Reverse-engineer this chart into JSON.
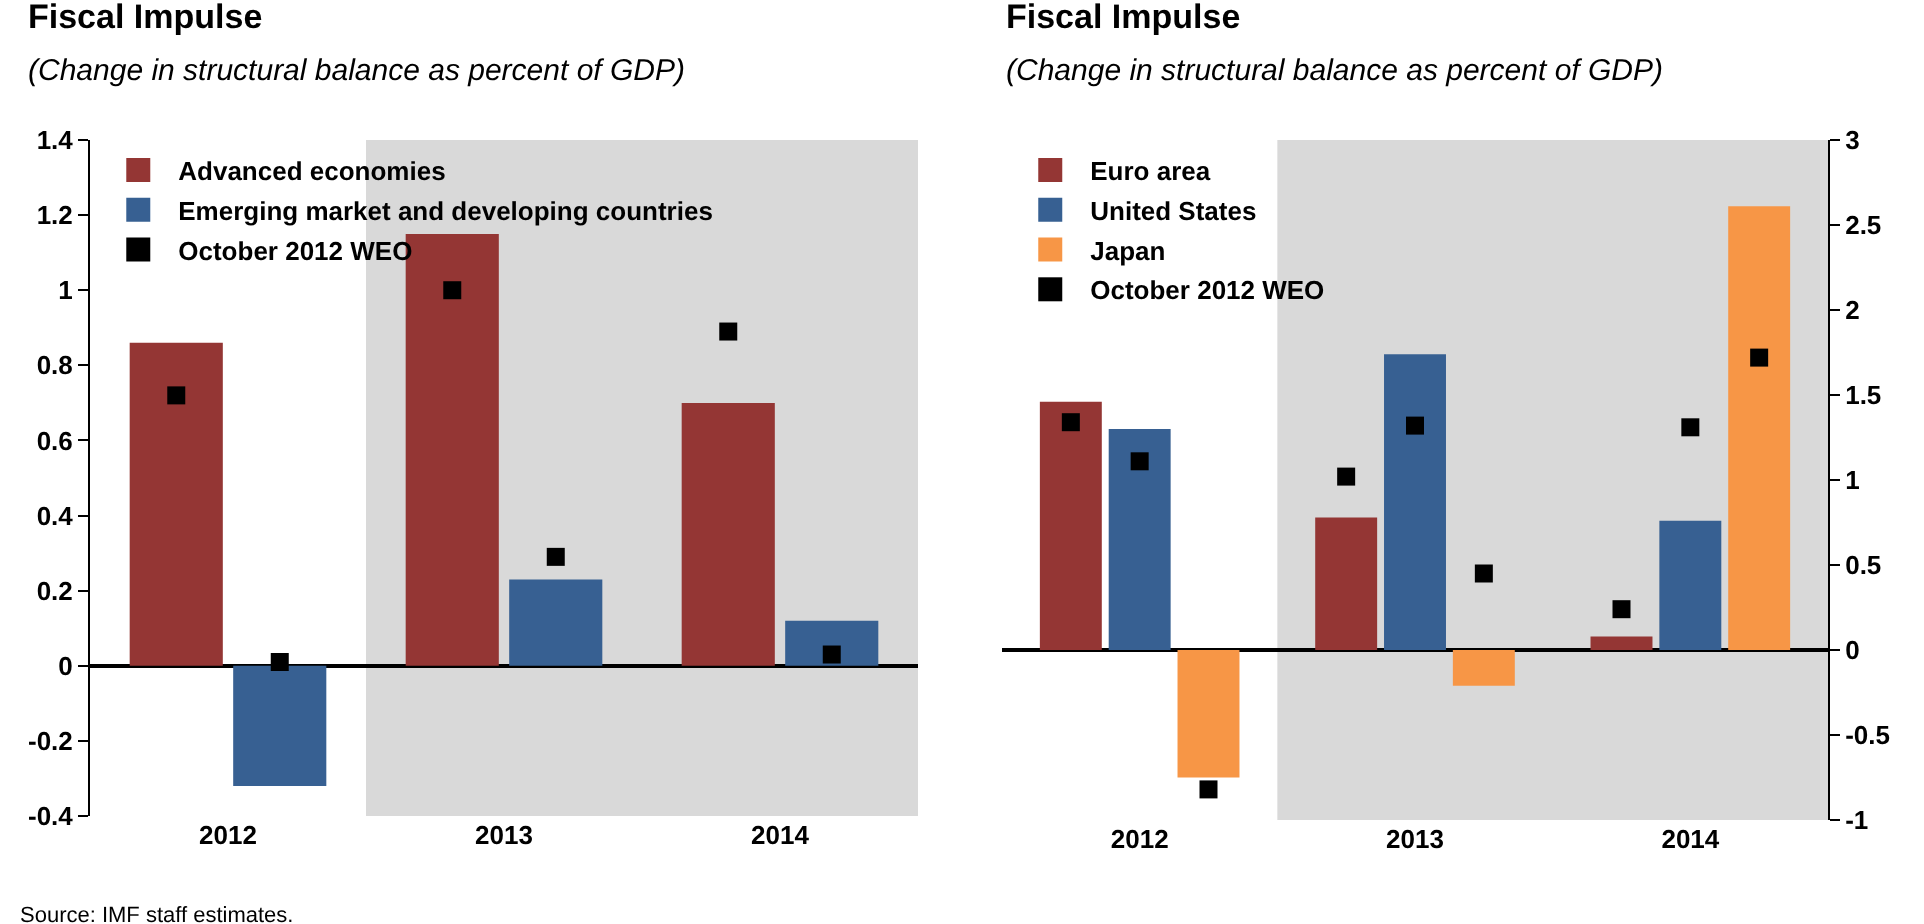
{
  "chart_data": [
    {
      "type": "bar",
      "title": "Fiscal Impulse",
      "subtitle": "(Change in structural balance as percent of GDP)",
      "categories": [
        "2012",
        "2013",
        "2014"
      ],
      "series": [
        {
          "name": "Advanced economies",
          "color": "#943634",
          "values": [
            0.86,
            1.15,
            0.7
          ]
        },
        {
          "name": "Emerging market and developing countries",
          "color": "#376092",
          "values": [
            -0.32,
            0.23,
            0.12
          ]
        },
        {
          "type": "scatter",
          "name": "October 2012 WEO",
          "color": "#000000",
          "values": [
            0.72,
            1.0,
            0.89
          ]
        },
        {
          "type": "scatter",
          "color": "#000000",
          "values": [
            0.01,
            0.29,
            0.03
          ]
        }
      ],
      "ylim": [
        -0.4,
        1.4
      ],
      "yticks": [
        -0.4,
        -0.2,
        0,
        0.2,
        0.4,
        0.6,
        0.8,
        1,
        1.2,
        1.4
      ],
      "legend": "top left",
      "marker": "square",
      "bands": [
        {
          "axis": "x",
          "from": "2013",
          "to": "2014",
          "color": "#d9d9d9"
        }
      ],
      "annotations": [
        "Source: IMF staff estimates."
      ]
    },
    {
      "type": "bar",
      "title": "Fiscal Impulse",
      "subtitle": "(Change in structural balance as percent of GDP)",
      "categories": [
        "2012",
        "2013",
        "2014"
      ],
      "series": [
        {
          "name": "Euro area",
          "color": "#943634",
          "values": [
            1.46,
            0.78,
            0.08
          ]
        },
        {
          "name": "United States",
          "color": "#376092",
          "values": [
            1.3,
            1.74,
            0.76
          ]
        },
        {
          "name": "Japan",
          "color": "#f79646",
          "values": [
            -0.75,
            -0.21,
            2.61
          ]
        },
        {
          "type": "scatter",
          "name": "October 2012 WEO",
          "color": "#000000",
          "values": [
            1.34,
            1.02,
            0.24
          ]
        },
        {
          "type": "scatter",
          "color": "#000000",
          "values": [
            1.11,
            1.32,
            1.31
          ]
        },
        {
          "type": "scatter",
          "color": "#000000",
          "values": [
            -0.82,
            0.45,
            1.72
          ]
        }
      ],
      "ylim": [
        -1,
        3
      ],
      "yticks": [
        -1,
        -0.5,
        0,
        0.5,
        1,
        1.5,
        2,
        2.5,
        3
      ],
      "legend": "top left",
      "marker": "square",
      "bands": [
        {
          "axis": "x",
          "from": "2013",
          "to": "2014",
          "color": "#d9d9d9"
        }
      ]
    }
  ]
}
